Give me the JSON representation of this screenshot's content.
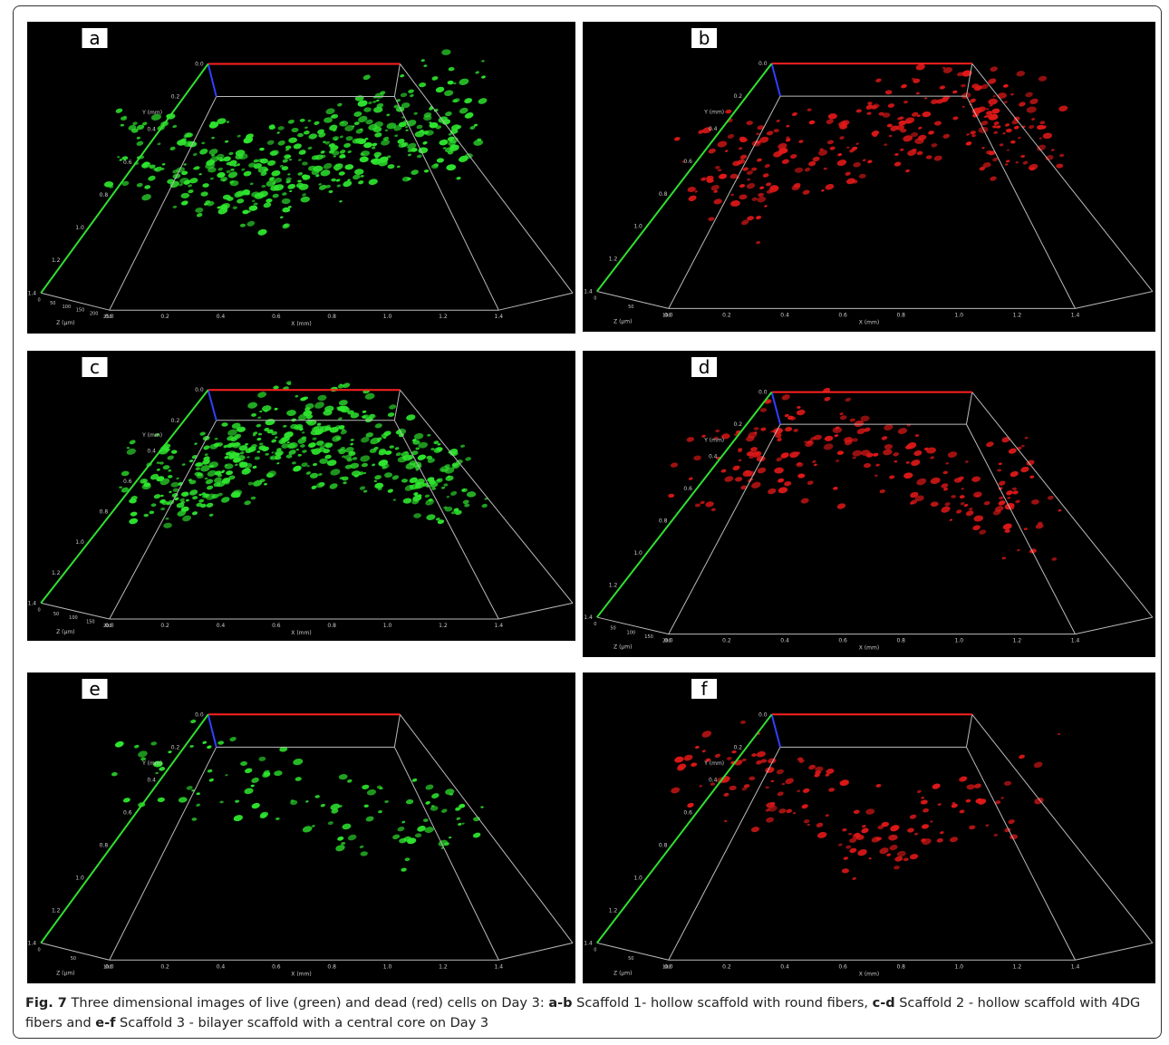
{
  "panels": [
    {
      "label": "a",
      "cell_color": "#2ee62e",
      "x_axis": "X (mm)",
      "y_axis": "Y (mm)",
      "z_axis": "Z (µm)",
      "x_ticks": [
        "0.0",
        "0.2",
        "0.4",
        "0.6",
        "0.8",
        "1.0",
        "1.2",
        "1.4"
      ],
      "y_ticks": [
        "0.0",
        "0.2",
        "0.4",
        "0.6",
        "0.8",
        "1.0",
        "1.2",
        "1.4"
      ],
      "z_ticks": [
        "0",
        "50",
        "100",
        "150",
        "200",
        "250"
      ]
    },
    {
      "label": "b",
      "cell_color": "#e01818",
      "x_axis": "X (mm)",
      "y_axis": "Y (mm)",
      "z_axis": "Z (µm)",
      "x_ticks": [
        "0.0",
        "0.2",
        "0.4",
        "0.6",
        "0.8",
        "1.0",
        "1.2",
        "1.4"
      ],
      "y_ticks": [
        "0.0",
        "0.2",
        "0.4",
        "0.6",
        "0.8",
        "1.0",
        "1.2",
        "1.4"
      ],
      "z_ticks": [
        "0",
        "50",
        "100"
      ]
    },
    {
      "label": "c",
      "cell_color": "#2ee62e",
      "x_axis": "X (mm)",
      "y_axis": "Y (mm)",
      "z_axis": "Z (µm)",
      "x_ticks": [
        "0.0",
        "0.2",
        "0.4",
        "0.6",
        "0.8",
        "1.0",
        "1.2",
        "1.4"
      ],
      "y_ticks": [
        "0.0",
        "0.2",
        "0.4",
        "0.6",
        "0.8",
        "1.0",
        "1.2",
        "1.4"
      ],
      "z_ticks": [
        "0",
        "50",
        "100",
        "150",
        "200"
      ]
    },
    {
      "label": "d",
      "cell_color": "#e01818",
      "x_axis": "X (mm)",
      "y_axis": "Y (mm)",
      "z_axis": "Z (µm)",
      "x_ticks": [
        "0.0",
        "0.2",
        "0.4",
        "0.6",
        "0.8",
        "1.0",
        "1.2",
        "1.4"
      ],
      "y_ticks": [
        "0.0",
        "0.2",
        "0.4",
        "0.6",
        "0.8",
        "1.0",
        "1.2",
        "1.4"
      ],
      "z_ticks": [
        "0",
        "50",
        "100",
        "150",
        "200"
      ]
    },
    {
      "label": "e",
      "cell_color": "#2ee62e",
      "x_axis": "X (mm)",
      "y_axis": "Y (mm)",
      "z_axis": "Z (µm)",
      "x_ticks": [
        "0.0",
        "0.2",
        "0.4",
        "0.6",
        "0.8",
        "1.0",
        "1.2",
        "1.4"
      ],
      "y_ticks": [
        "0.0",
        "0.2",
        "0.4",
        "0.6",
        "0.8",
        "1.0",
        "1.2",
        "1.4"
      ],
      "z_ticks": [
        "0",
        "50",
        "100"
      ]
    },
    {
      "label": "f",
      "cell_color": "#e01818",
      "x_axis": "X (mm)",
      "y_axis": "Y (mm)",
      "z_axis": "Z (µm)",
      "x_ticks": [
        "0.0",
        "0.2",
        "0.4",
        "0.6",
        "0.8",
        "1.0",
        "1.2",
        "1.4"
      ],
      "y_ticks": [
        "0.0",
        "0.2",
        "0.4",
        "0.6",
        "0.8",
        "1.0",
        "1.2",
        "1.4"
      ],
      "z_ticks": [
        "0",
        "50",
        "100"
      ]
    }
  ],
  "caption": {
    "segments": [
      "Fig. 7",
      " Three dimensional images of live (green) and dead (red) cells on Day 3: ",
      "a-b",
      " Scaffold 1- hollow scaffold with round fibers, ",
      "c-d",
      " Scaffold 2 - hollow scaffold with 4DG fibers and ",
      "e-f",
      " Scaffold 3 - bilayer scaffold with a central core on Day 3"
    ]
  }
}
